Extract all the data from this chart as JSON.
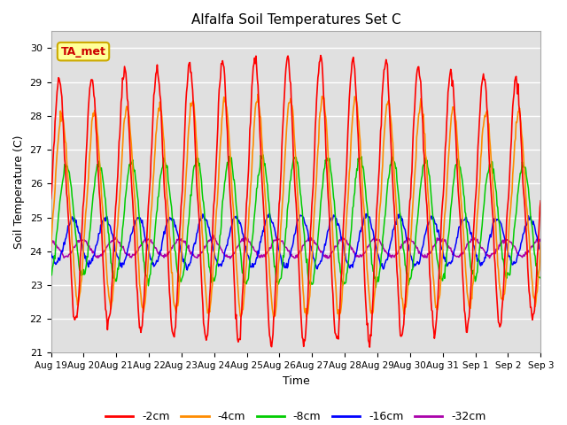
{
  "title": "Alfalfa Soil Temperatures Set C",
  "xlabel": "Time",
  "ylabel": "Soil Temperature (C)",
  "ylim": [
    21.0,
    30.5
  ],
  "yticks": [
    21.0,
    22.0,
    23.0,
    24.0,
    25.0,
    26.0,
    27.0,
    28.0,
    29.0,
    30.0
  ],
  "n_days": 15,
  "x_tick_labels": [
    "Aug 19",
    "Aug 20",
    "Aug 21",
    "Aug 22",
    "Aug 23",
    "Aug 24",
    "Aug 25",
    "Aug 26",
    "Aug 27",
    "Aug 28",
    "Aug 29",
    "Aug 30",
    "Aug 31",
    "Sep 1",
    "Sep 2",
    "Sep 3"
  ],
  "colors": {
    "-2cm": "#FF0000",
    "-4cm": "#FF8C00",
    "-8cm": "#00CC00",
    "-16cm": "#0000FF",
    "-32cm": "#AA00AA"
  },
  "background_color": "#E0E0E0",
  "legend_label": "TA_met",
  "legend_box_facecolor": "#FFFF99",
  "legend_box_edgecolor": "#CCAA00",
  "legend_text_color": "#CC0000",
  "series_2cm": {
    "amp": 3.4,
    "mean": 25.5,
    "phase": 0.583,
    "lag_phase": 0.0
  },
  "series_4cm": {
    "amp": 2.6,
    "mean": 25.3,
    "phase": 0.583,
    "lag_phase": 0.08
  },
  "series_8cm": {
    "amp": 1.5,
    "mean": 24.9,
    "phase": 0.583,
    "lag_phase": 0.22
  },
  "series_16cm": {
    "amp": 0.6,
    "mean": 24.3,
    "phase": 0.583,
    "lag_phase": 0.42
  },
  "series_32cm": {
    "amp": 0.22,
    "mean": 24.1,
    "phase": 0.583,
    "lag_phase": 0.7
  }
}
